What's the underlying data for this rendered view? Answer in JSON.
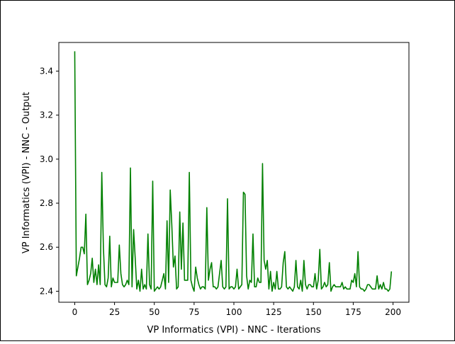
{
  "chart_data": {
    "type": "line",
    "title": "",
    "xlabel": "VP Informatics (VPI) - NNC - Iterations",
    "ylabel": "VP Informatics (VPI) - NNC - Output",
    "xlim": [
      -10,
      210
    ],
    "ylim": [
      2.35,
      3.53
    ],
    "xticks": [
      0,
      25,
      50,
      75,
      100,
      125,
      150,
      175,
      200
    ],
    "yticks": [
      2.4,
      2.6,
      2.8,
      3.0,
      3.2,
      3.4
    ],
    "ytick_labels": [
      "2.4",
      "2.6",
      "2.8",
      "3.0",
      "3.2",
      "3.4"
    ],
    "grid": false,
    "series": [
      {
        "color": "#008000",
        "x": [
          0,
          1,
          2,
          3,
          4,
          5,
          6,
          7,
          8,
          9,
          10,
          11,
          12,
          13,
          14,
          15,
          16,
          17,
          18,
          19,
          20,
          21,
          22,
          23,
          24,
          25,
          26,
          27,
          28,
          29,
          30,
          31,
          32,
          33,
          34,
          35,
          36,
          37,
          38,
          39,
          40,
          41,
          42,
          43,
          44,
          45,
          46,
          47,
          48,
          49,
          50,
          51,
          52,
          53,
          54,
          55,
          56,
          57,
          58,
          59,
          60,
          61,
          62,
          63,
          64,
          65,
          66,
          67,
          68,
          69,
          70,
          71,
          72,
          73,
          74,
          75,
          76,
          77,
          78,
          79,
          80,
          81,
          82,
          83,
          84,
          85,
          86,
          87,
          88,
          89,
          90,
          91,
          92,
          93,
          94,
          95,
          96,
          97,
          98,
          99,
          100,
          101,
          102,
          103,
          104,
          105,
          106,
          107,
          108,
          109,
          110,
          111,
          112,
          113,
          114,
          115,
          116,
          117,
          118,
          119,
          120,
          121,
          122,
          123,
          124,
          125,
          126,
          127,
          128,
          129,
          130,
          131,
          132,
          133,
          134,
          135,
          136,
          137,
          138,
          139,
          140,
          141,
          142,
          143,
          144,
          145,
          146,
          147,
          148,
          149,
          150,
          151,
          152,
          153,
          154,
          155,
          156,
          157,
          158,
          159,
          160,
          161,
          162,
          163,
          164,
          165,
          166,
          167,
          168,
          169,
          170,
          171,
          172,
          173,
          174,
          175,
          176,
          177,
          178,
          179,
          180,
          181,
          182,
          183,
          184,
          185,
          186,
          187,
          188,
          189,
          190,
          191,
          192,
          193,
          194,
          195,
          196,
          197,
          198,
          199
        ],
        "y": [
          3.49,
          2.47,
          2.51,
          2.55,
          2.6,
          2.6,
          2.57,
          2.75,
          2.43,
          2.45,
          2.48,
          2.55,
          2.44,
          2.5,
          2.43,
          2.52,
          2.43,
          2.94,
          2.6,
          2.43,
          2.42,
          2.46,
          2.65,
          2.42,
          2.46,
          2.44,
          2.44,
          2.44,
          2.61,
          2.48,
          2.43,
          2.42,
          2.43,
          2.45,
          2.43,
          2.96,
          2.42,
          2.68,
          2.55,
          2.41,
          2.45,
          2.4,
          2.5,
          2.41,
          2.43,
          2.41,
          2.66,
          2.43,
          2.41,
          2.9,
          2.4,
          2.41,
          2.42,
          2.41,
          2.42,
          2.45,
          2.48,
          2.41,
          2.72,
          2.44,
          2.86,
          2.7,
          2.51,
          2.56,
          2.41,
          2.42,
          2.76,
          2.5,
          2.71,
          2.45,
          2.45,
          2.45,
          2.94,
          2.45,
          2.42,
          2.4,
          2.51,
          2.46,
          2.43,
          2.41,
          2.42,
          2.42,
          2.41,
          2.78,
          2.45,
          2.5,
          2.53,
          2.42,
          2.42,
          2.41,
          2.42,
          2.48,
          2.54,
          2.42,
          2.41,
          2.42,
          2.82,
          2.41,
          2.42,
          2.42,
          2.41,
          2.42,
          2.5,
          2.41,
          2.42,
          2.43,
          2.85,
          2.84,
          2.47,
          2.41,
          2.45,
          2.44,
          2.66,
          2.42,
          2.42,
          2.46,
          2.44,
          2.44,
          2.98,
          2.54,
          2.5,
          2.54,
          2.41,
          2.49,
          2.4,
          2.44,
          2.41,
          2.49,
          2.41,
          2.41,
          2.42,
          2.53,
          2.58,
          2.42,
          2.41,
          2.42,
          2.41,
          2.4,
          2.42,
          2.54,
          2.42,
          2.41,
          2.45,
          2.4,
          2.54,
          2.43,
          2.41,
          2.43,
          2.43,
          2.42,
          2.42,
          2.48,
          2.41,
          2.45,
          2.59,
          2.41,
          2.42,
          2.44,
          2.42,
          2.43,
          2.53,
          2.4,
          2.42,
          2.43,
          2.42,
          2.42,
          2.42,
          2.42,
          2.44,
          2.41,
          2.42,
          2.41,
          2.41,
          2.41,
          2.45,
          2.44,
          2.48,
          2.42,
          2.58,
          2.42,
          2.41,
          2.41,
          2.4,
          2.41,
          2.43,
          2.43,
          2.42,
          2.41,
          2.41,
          2.41,
          2.47,
          2.41,
          2.43,
          2.41,
          2.44,
          2.41,
          2.41,
          2.4,
          2.41,
          2.49
        ]
      }
    ]
  }
}
